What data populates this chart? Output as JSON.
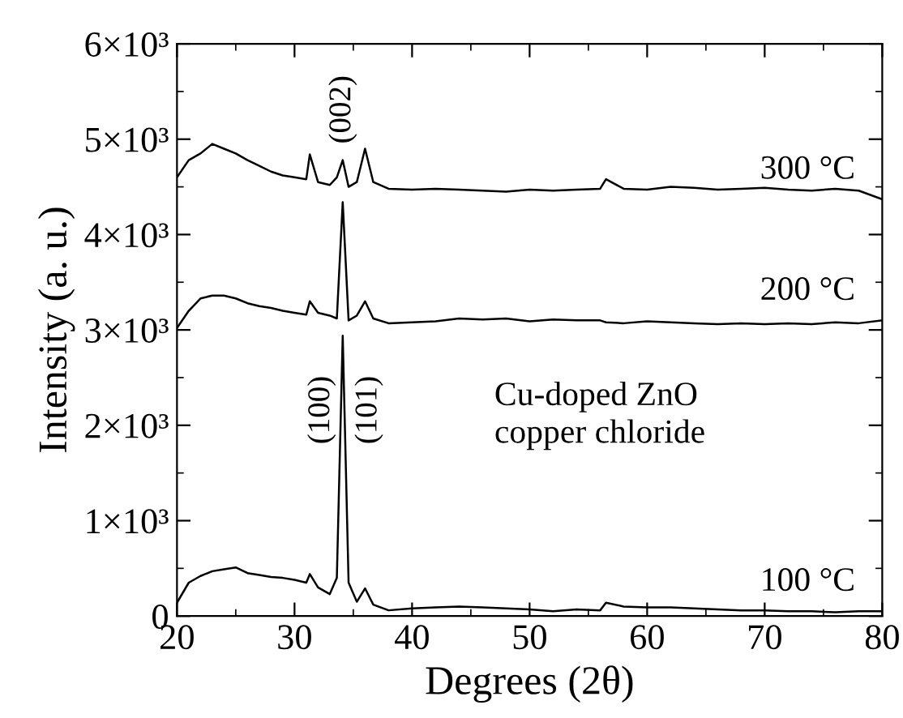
{
  "chart_data": {
    "type": "line",
    "xlabel": "Degrees (2θ)",
    "ylabel": "Intensity (a. u.)",
    "x": [
      20,
      21,
      22,
      23,
      24,
      25,
      26,
      27,
      28,
      29,
      30,
      31,
      31.3,
      32,
      33,
      33.6,
      34.1,
      34.6,
      35.3,
      36,
      36.7,
      38,
      40,
      42,
      44,
      46,
      48,
      50,
      52,
      54,
      56,
      56.5,
      58,
      60,
      62,
      64,
      66,
      68,
      70,
      72,
      74,
      76,
      78,
      80
    ],
    "series": [
      {
        "name": "300 °C",
        "color": "#000000",
        "values": [
          4600,
          4780,
          4850,
          4950,
          4900,
          4850,
          4780,
          4720,
          4660,
          4620,
          4600,
          4580,
          4840,
          4550,
          4520,
          4600,
          4780,
          4500,
          4550,
          4900,
          4550,
          4480,
          4470,
          4480,
          4470,
          4460,
          4450,
          4470,
          4460,
          4470,
          4480,
          4580,
          4480,
          4470,
          4500,
          4490,
          4470,
          4480,
          4490,
          4470,
          4460,
          4480,
          4460,
          4370
        ]
      },
      {
        "name": "200 °C",
        "color": "#000000",
        "values": [
          3020,
          3200,
          3330,
          3360,
          3360,
          3330,
          3280,
          3250,
          3230,
          3200,
          3180,
          3160,
          3300,
          3180,
          3150,
          3120,
          4340,
          3100,
          3150,
          3300,
          3120,
          3070,
          3080,
          3090,
          3120,
          3110,
          3120,
          3090,
          3110,
          3100,
          3100,
          3080,
          3070,
          3090,
          3080,
          3070,
          3060,
          3070,
          3060,
          3070,
          3060,
          3080,
          3070,
          3100
        ]
      },
      {
        "name": "100 °C",
        "color": "#000000",
        "values": [
          140,
          350,
          420,
          470,
          490,
          510,
          450,
          430,
          410,
          400,
          380,
          350,
          440,
          300,
          230,
          400,
          2940,
          350,
          150,
          290,
          120,
          60,
          80,
          90,
          100,
          90,
          80,
          70,
          50,
          70,
          60,
          140,
          100,
          90,
          90,
          80,
          70,
          60,
          60,
          50,
          50,
          40,
          50,
          50
        ]
      }
    ],
    "xlim": [
      20,
      80
    ],
    "xticks": [
      20,
      30,
      40,
      50,
      60,
      70,
      80
    ],
    "ylim": [
      0,
      6000
    ],
    "yticks": [
      0,
      {
        "value": 1000,
        "label": "1×10³"
      },
      {
        "value": 2000,
        "label": "2×10³"
      },
      {
        "value": 3000,
        "label": "3×10³"
      },
      {
        "value": 4000,
        "label": "4×10³"
      },
      {
        "value": 5000,
        "label": "5×10³"
      },
      {
        "value": 6000,
        "label": "6×10³"
      }
    ],
    "grid": false,
    "legend": "right",
    "marker": "none",
    "line_style": "solid",
    "annotations": [
      "(002)",
      "(100)",
      "(101)",
      "Cu-doped ZnO\ncopper chloride"
    ]
  }
}
